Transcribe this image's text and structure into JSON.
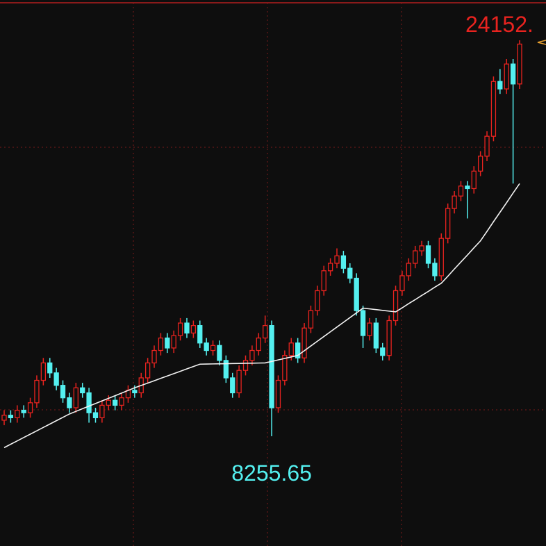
{
  "chart_data": {
    "type": "candlestick",
    "up_color": "#e8231f",
    "down_color": "#54f0f0",
    "ma_color": "#f2f2f2",
    "ylim": [
      3850,
      25770
    ],
    "open": [
      8900,
      9100,
      9000,
      9300,
      9200,
      9600,
      10500,
      11200,
      10800,
      10300,
      9800,
      9400,
      10200,
      10000,
      9200,
      9000,
      9500,
      9700,
      9500,
      9800,
      10100,
      10000,
      10600,
      11200,
      11700,
      12200,
      11800,
      12300,
      12800,
      12400,
      12700,
      12000,
      11700,
      11900,
      11300,
      10600,
      10000,
      10900,
      11300,
      11700,
      12200,
      12700,
      9400,
      10500,
      11500,
      12000,
      11400,
      12600,
      13300,
      14100,
      14900,
      15200,
      15500,
      15000,
      14600,
      13300,
      12300,
      12800,
      11800,
      11500,
      12900,
      14100,
      14700,
      15200,
      15700,
      15900,
      15200,
      14700,
      16200,
      17400,
      17900,
      18300,
      18200,
      18900,
      19500,
      20300,
      22500,
      22200,
      23200,
      22400
    ],
    "high": [
      9300,
      9300,
      9500,
      9500,
      9800,
      10700,
      11400,
      11400,
      11000,
      10500,
      10000,
      10400,
      10400,
      10200,
      9400,
      9700,
      9900,
      9900,
      10000,
      10300,
      10300,
      10800,
      11400,
      11900,
      12400,
      12400,
      12500,
      13000,
      13000,
      12900,
      12900,
      12200,
      12100,
      12100,
      11500,
      10800,
      11100,
      11500,
      11900,
      12400,
      13100,
      12900,
      10700,
      11700,
      12200,
      12200,
      12800,
      13500,
      14300,
      15100,
      15400,
      15800,
      15700,
      15200,
      14800,
      13500,
      13000,
      13000,
      12000,
      13100,
      14300,
      14900,
      15400,
      15900,
      16100,
      16100,
      15400,
      16400,
      17600,
      18100,
      18500,
      18500,
      19100,
      19700,
      20500,
      22700,
      23000,
      23400,
      23400,
      24152
    ],
    "low": [
      8700,
      8800,
      8800,
      9000,
      9000,
      9400,
      10300,
      10600,
      10100,
      9600,
      9200,
      9200,
      9800,
      8800,
      8800,
      8800,
      9300,
      9300,
      9300,
      9600,
      9800,
      9800,
      10400,
      11000,
      11500,
      11600,
      11600,
      12100,
      12200,
      12200,
      11800,
      11500,
      11500,
      11100,
      10400,
      9800,
      9800,
      10700,
      11100,
      11500,
      12000,
      8255.65,
      9200,
      10300,
      11300,
      11200,
      11200,
      12400,
      13100,
      13900,
      14700,
      15000,
      14800,
      14400,
      13100,
      11800,
      12100,
      11600,
      11300,
      11300,
      12700,
      13900,
      14500,
      15000,
      15500,
      15000,
      14500,
      14500,
      16000,
      17200,
      17700,
      17000,
      18000,
      18700,
      19300,
      20100,
      22000,
      22000,
      18400,
      22200
    ],
    "close": [
      9100,
      9000,
      9300,
      9200,
      9600,
      10500,
      11200,
      10800,
      10300,
      9800,
      9400,
      10200,
      10000,
      9200,
      9000,
      9500,
      9700,
      9500,
      9800,
      10100,
      10000,
      10600,
      11200,
      11700,
      12200,
      11800,
      12300,
      12800,
      12400,
      12700,
      12000,
      11700,
      11900,
      11300,
      10600,
      10000,
      10900,
      11300,
      11700,
      12200,
      12700,
      9400,
      10500,
      11500,
      12000,
      11400,
      12600,
      13300,
      14100,
      14900,
      15200,
      15500,
      15000,
      14600,
      13300,
      12300,
      12800,
      11800,
      11500,
      12900,
      14100,
      14700,
      15200,
      15700,
      15900,
      15200,
      14700,
      16200,
      17400,
      17900,
      18300,
      18200,
      18900,
      19500,
      20300,
      22500,
      22200,
      23200,
      22400,
      24000
    ],
    "ma": {
      "values": [
        7800,
        7935,
        8070,
        8205,
        8340,
        8475,
        8610,
        8745,
        8880,
        9015,
        9150,
        9255,
        9360,
        9465,
        9570,
        9675,
        9780,
        9885,
        9990,
        10095,
        10200,
        10295,
        10390,
        10485,
        10580,
        10675,
        10770,
        10865,
        10960,
        11055,
        11150,
        11155,
        11160,
        11165,
        11170,
        11175,
        11180,
        11185,
        11190,
        11195,
        11200,
        11260,
        11320,
        11380,
        11440,
        11500,
        11690,
        11880,
        12070,
        12260,
        12450,
        12640,
        12830,
        13020,
        13210,
        13400,
        13370,
        13340,
        13310,
        13280,
        13250,
        13410,
        13580,
        13740,
        13910,
        14070,
        14240,
        14400,
        14680,
        14970,
        15250,
        15530,
        15820,
        16100,
        16480,
        16870,
        17250,
        17630,
        18020,
        18400
      ]
    },
    "high_label": "24152.",
    "low_label": "8255.65"
  }
}
